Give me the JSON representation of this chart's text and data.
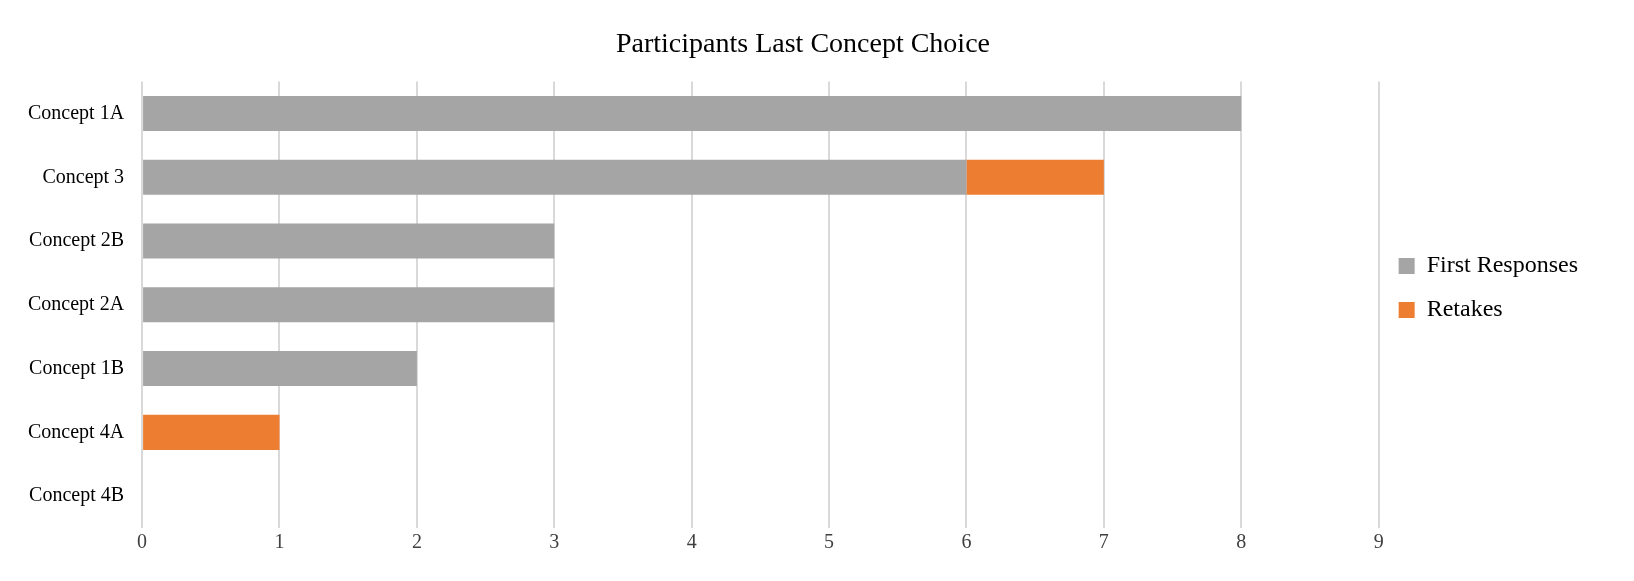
{
  "chart_data": {
    "type": "bar",
    "orientation": "horizontal",
    "stacked": true,
    "title": "Participants Last Concept Choice",
    "categories": [
      "Concept 1A",
      "Concept 3",
      "Concept 2B",
      "Concept 2A",
      "Concept 1B",
      "Concept 4A",
      "Concept 4B"
    ],
    "series": [
      {
        "name": "First Responses",
        "color": "#a5a5a5",
        "values": [
          8,
          6,
          3,
          3,
          2,
          0,
          0
        ]
      },
      {
        "name": "Retakes",
        "color": "#ed7d31",
        "values": [
          0,
          1,
          0,
          0,
          0,
          1,
          0
        ]
      }
    ],
    "xlim": [
      0,
      9
    ],
    "xticks": [
      0,
      1,
      2,
      3,
      4,
      5,
      6,
      7,
      8,
      9
    ],
    "grid": "x",
    "legend": "right"
  }
}
